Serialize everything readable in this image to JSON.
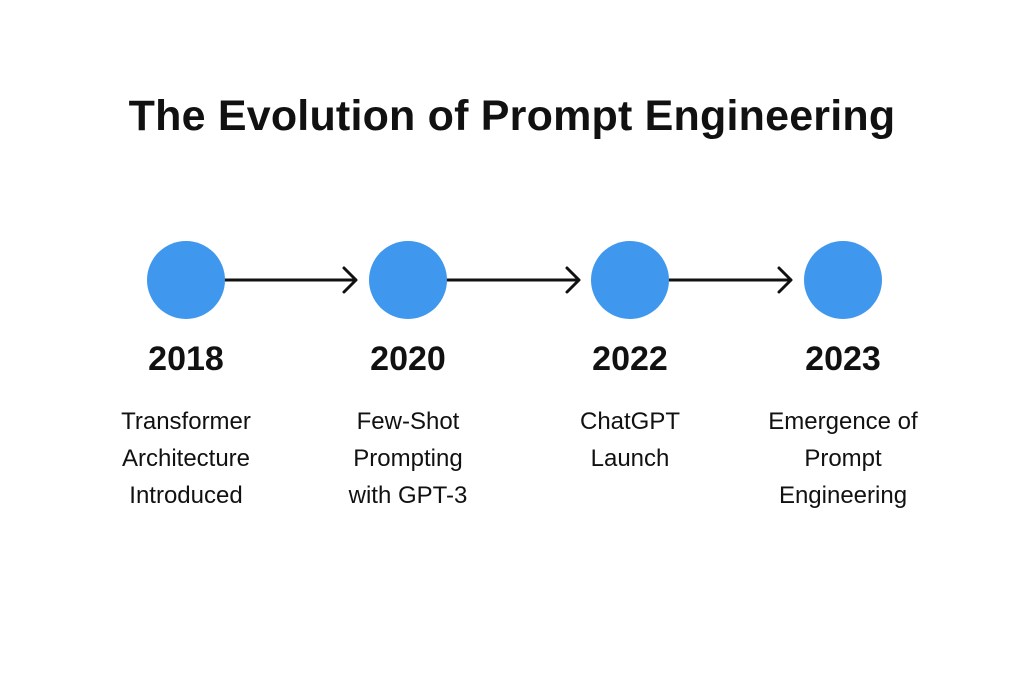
{
  "title": "The Evolution of Prompt Engineering",
  "colors": {
    "node": "#3f97ee",
    "arrow": "#111111",
    "text": "#111111"
  },
  "events": [
    {
      "year": "2018",
      "description": "Transformer\nArchitecture\nIntroduced"
    },
    {
      "year": "2020",
      "description": "Few-Shot\nPrompting\nwith GPT-3"
    },
    {
      "year": "2022",
      "description": "ChatGPT\nLaunch"
    },
    {
      "year": "2023",
      "description": "Emergence of\nPrompt\nEngineering"
    }
  ]
}
